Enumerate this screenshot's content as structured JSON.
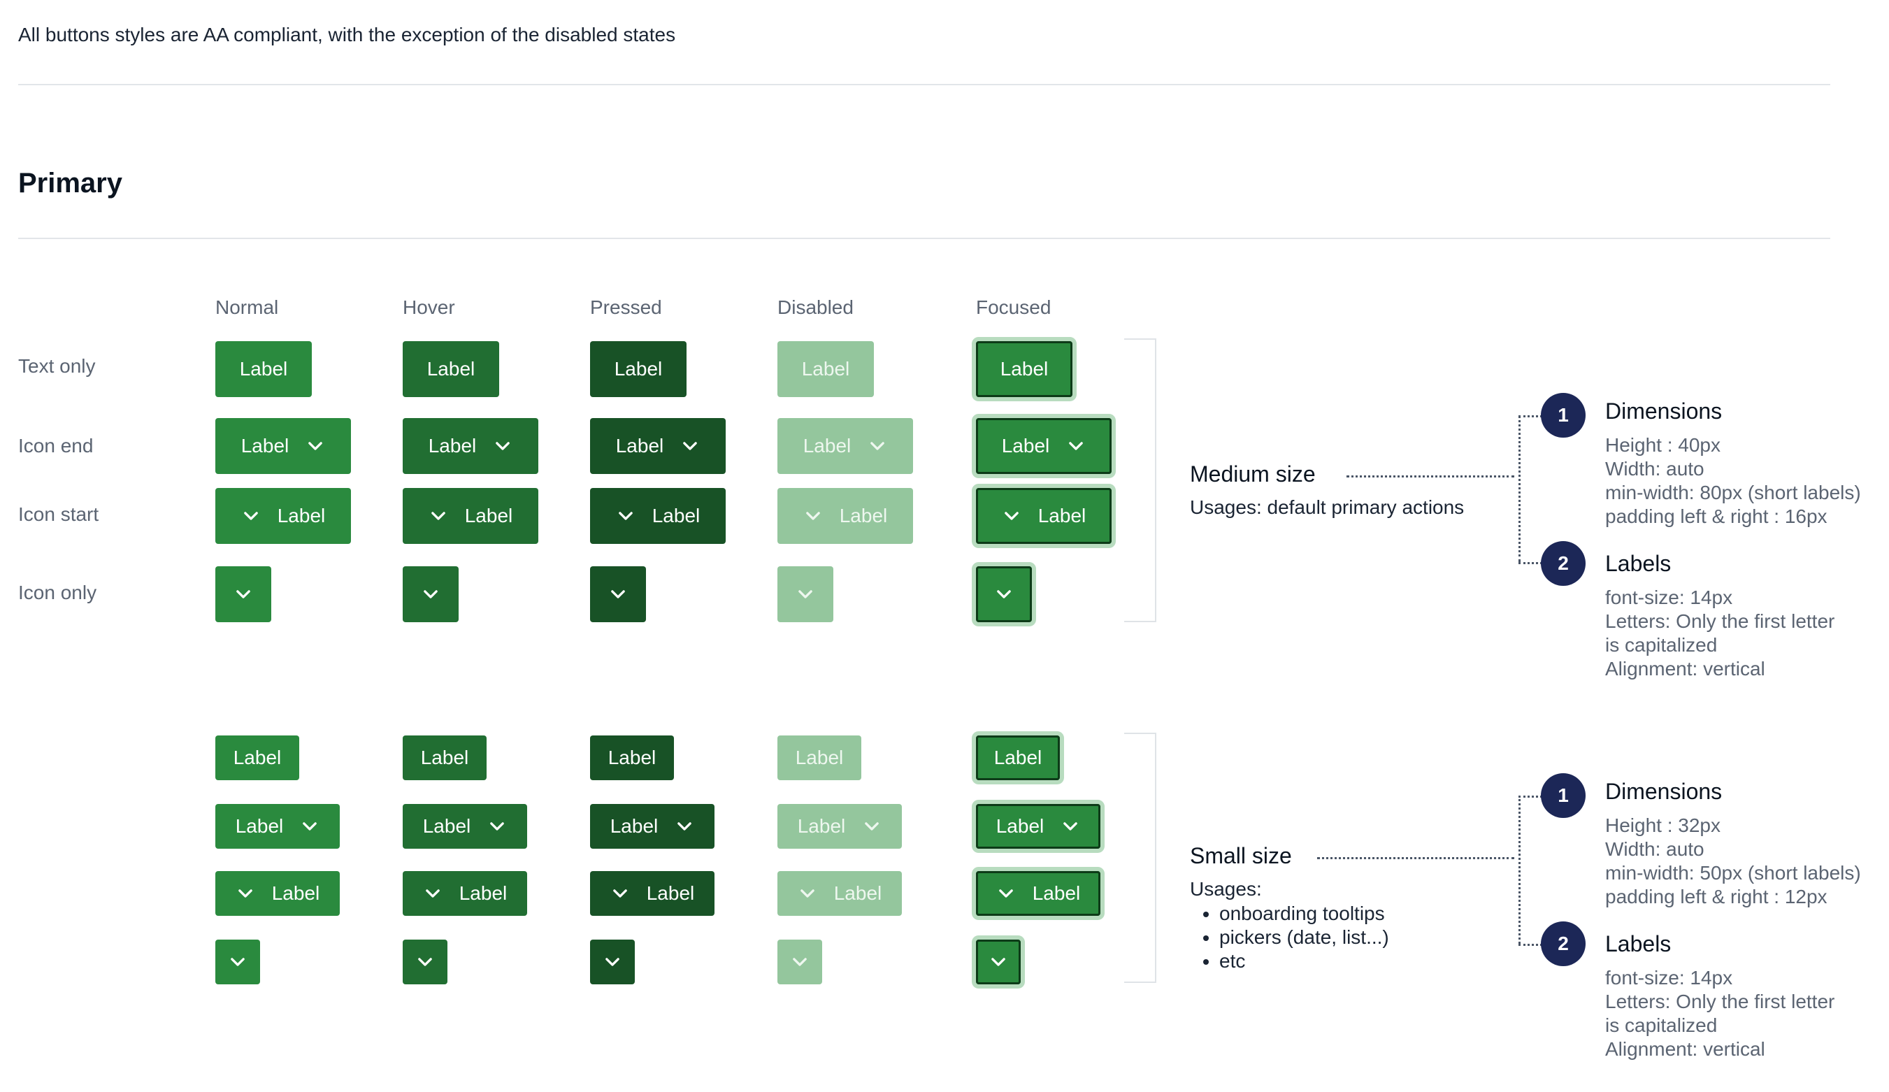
{
  "intro": "All buttons styles are AA compliant, with the exception of the disabled states",
  "section_title": "Primary",
  "columns": [
    "Normal",
    "Hover",
    "Pressed",
    "Disabled",
    "Focused"
  ],
  "rows": [
    "Text only",
    "Icon end",
    "Icon start",
    "Icon only"
  ],
  "button_label": "Label",
  "colors": {
    "normal": "#2a8a3e",
    "hover": "#216e32",
    "pressed": "#185226",
    "disabled": "#94c69d",
    "focus_ring": "#b8dcbf",
    "badge": "#1c2757"
  },
  "icons": {
    "button_icon": "chevron-down-icon"
  },
  "medium": {
    "title": "Medium size",
    "usage": "Usages: default primary actions",
    "dimensions": {
      "number": "1",
      "title": "Dimensions",
      "lines": [
        "Height : 40px",
        "Width: auto",
        "min-width: 80px (short labels)",
        "padding left & right : 16px"
      ]
    },
    "labels": {
      "number": "2",
      "title": "Labels",
      "lines": [
        "font-size: 14px",
        "Letters: Only the first letter",
        "is capitalized",
        "Alignment: vertical"
      ]
    }
  },
  "small": {
    "title": "Small size",
    "usage": "Usages:",
    "usage_items": [
      "onboarding tooltips",
      "pickers (date, list...)",
      "etc"
    ],
    "dimensions": {
      "number": "1",
      "title": "Dimensions",
      "lines": [
        "Height : 32px",
        "Width: auto",
        "min-width: 50px (short labels)",
        "padding left & right : 12px"
      ]
    },
    "labels": {
      "number": "2",
      "title": "Labels",
      "lines": [
        "font-size: 14px",
        "Letters: Only the first letter",
        "is capitalized",
        "Alignment: vertical"
      ]
    }
  }
}
